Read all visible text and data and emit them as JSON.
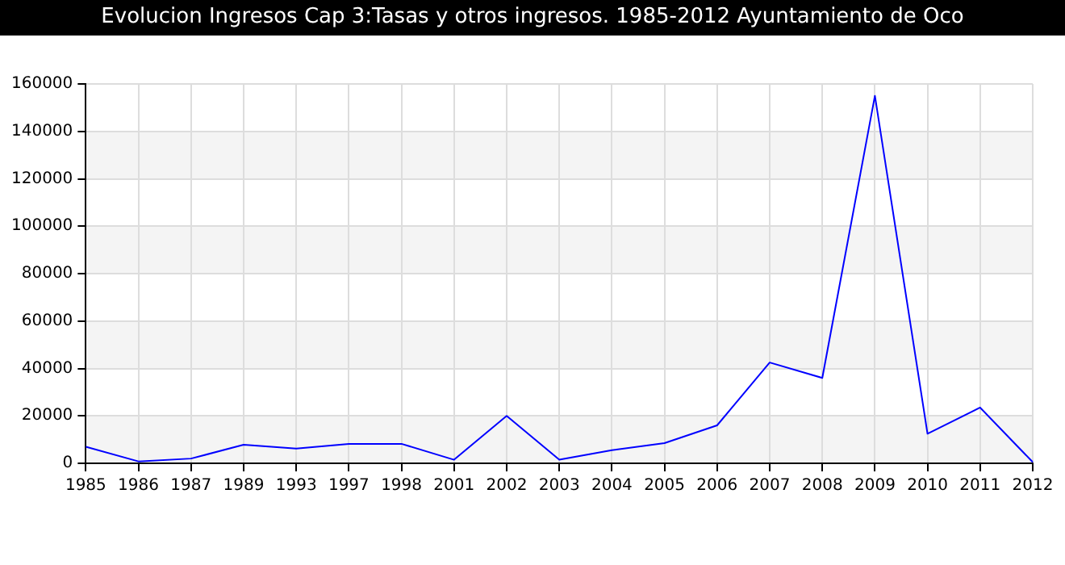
{
  "chart_data": {
    "type": "line",
    "title": "Evolucion Ingresos Cap 3:Tasas y otros ingresos. 1985-2012 Ayuntamiento de Oco",
    "categories": [
      "1985",
      "1986",
      "1987",
      "1989",
      "1993",
      "1997",
      "1998",
      "2001",
      "2002",
      "2003",
      "2004",
      "2005",
      "2006",
      "2007",
      "2008",
      "2009",
      "2010",
      "2011",
      "2012"
    ],
    "series": [
      {
        "color": "#0000ff",
        "values": [
          7000,
          800,
          2000,
          7800,
          6200,
          8200,
          8200,
          1500,
          20000,
          1500,
          5500,
          8500,
          16000,
          42500,
          36000,
          155000,
          12500,
          23500,
          500
        ]
      }
    ],
    "ylim": [
      0,
      160000
    ],
    "yticks": [
      0,
      20000,
      40000,
      60000,
      80000,
      100000,
      120000,
      140000,
      160000
    ],
    "grid": true,
    "legend": false,
    "marker": "none",
    "line_style": "solid"
  }
}
